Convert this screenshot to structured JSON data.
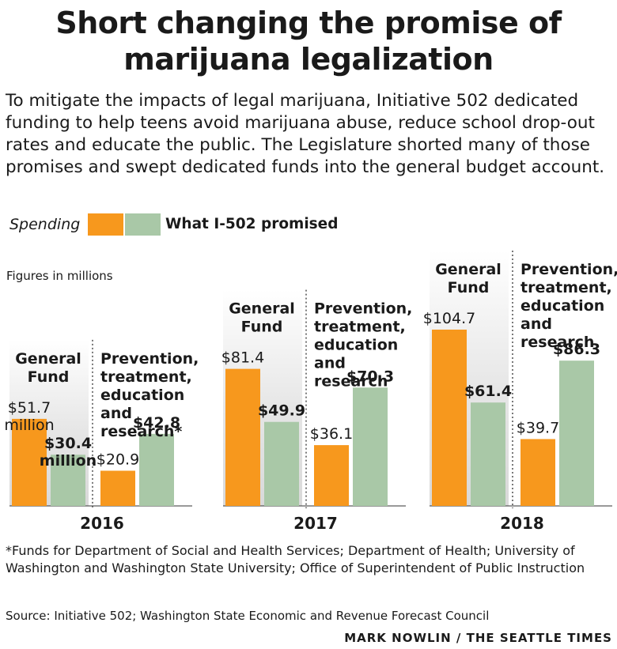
{
  "title": "Short changing the promise of marijuana legalization",
  "subtitle": "To mitigate the impacts of legal marijuana, Initiative 502 dedicated funding to help teens avoid marijuana abuse, reduce school drop-out rates and educate the public. The Legislature shorted many of those promises and swept dedicated funds into the general budget account.",
  "units_note": "Figures in millions",
  "footnote": "*Funds for Department of Social and Health Services; Department of Health; University of Washington and Washington State University; Office of Superintendent of Public Instruction",
  "source": "Source: Initiative 502; Washington State Economic and Revenue Forecast Council",
  "credit": "MARK NOWLIN / THE SEATTLE TIMES",
  "colors": {
    "spending": "#f7981d",
    "promised": "#a9c8a7"
  },
  "chart_data": {
    "type": "bar",
    "series_legend": [
      {
        "key": "spending",
        "name": "Spending"
      },
      {
        "key": "promised",
        "name": "What I-502 promised"
      }
    ],
    "groups": [
      {
        "year": "2016",
        "categories": [
          {
            "label_lines": [
              "General",
              "Fund"
            ],
            "spending": 51.7,
            "promised": 30.4,
            "spending_label": "$51.7",
            "promised_label": "$30.4",
            "spending_suffix": "million",
            "promised_suffix": "million"
          },
          {
            "label_lines": [
              "Prevention,",
              "treatment,",
              "education",
              "and",
              "research*"
            ],
            "spending": 20.9,
            "promised": 42.8,
            "spending_label": "$20.9",
            "promised_label": "$42.8"
          }
        ]
      },
      {
        "year": "2017",
        "categories": [
          {
            "label_lines": [
              "General",
              "Fund"
            ],
            "spending": 81.4,
            "promised": 49.9,
            "spending_label": "$81.4",
            "promised_label": "$49.9"
          },
          {
            "label_lines": [
              "Prevention,",
              "treatment,",
              "education",
              "and",
              "research"
            ],
            "spending": 36.1,
            "promised": 70.3,
            "spending_label": "$36.1",
            "promised_label": "$70.3"
          }
        ]
      },
      {
        "year": "2018",
        "categories": [
          {
            "label_lines": [
              "General",
              "Fund"
            ],
            "spending": 104.7,
            "promised": 61.4,
            "spending_label": "$104.7",
            "promised_label": "$61.4"
          },
          {
            "label_lines": [
              "Prevention,",
              "treatment,",
              "education",
              "and",
              "research"
            ],
            "spending": 39.7,
            "promised": 86.3,
            "spending_label": "$39.7",
            "promised_label": "$86.3"
          }
        ]
      }
    ]
  }
}
